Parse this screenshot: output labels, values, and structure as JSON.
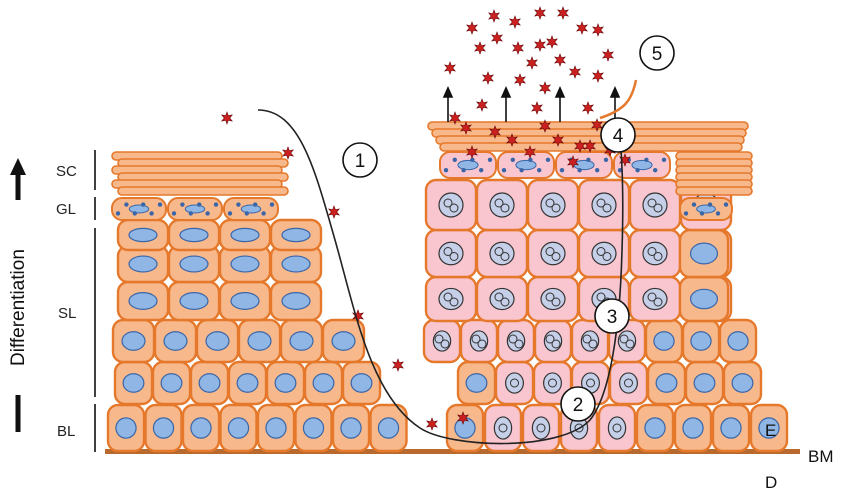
{
  "layers": {
    "sc": "SC",
    "gl": "GL",
    "sl": "SL",
    "bl": "BL"
  },
  "axis": {
    "differentiation": "Differentiation"
  },
  "tissue": {
    "epidermis": "E",
    "basement_membrane": "BM",
    "dermis": "D"
  },
  "steps": [
    "1",
    "2",
    "3",
    "4",
    "5"
  ],
  "colors": {
    "keratinocyte_fill": "#f7b98c",
    "keratinocyte_stroke": "#e5782b",
    "infected_fill": "#f9c6cf",
    "nucleus_fill": "#8fb6e4",
    "nucleus_stroke": "#3a66a8",
    "basement_membrane": "#b86a2e",
    "virion": "#cc1f1f"
  }
}
